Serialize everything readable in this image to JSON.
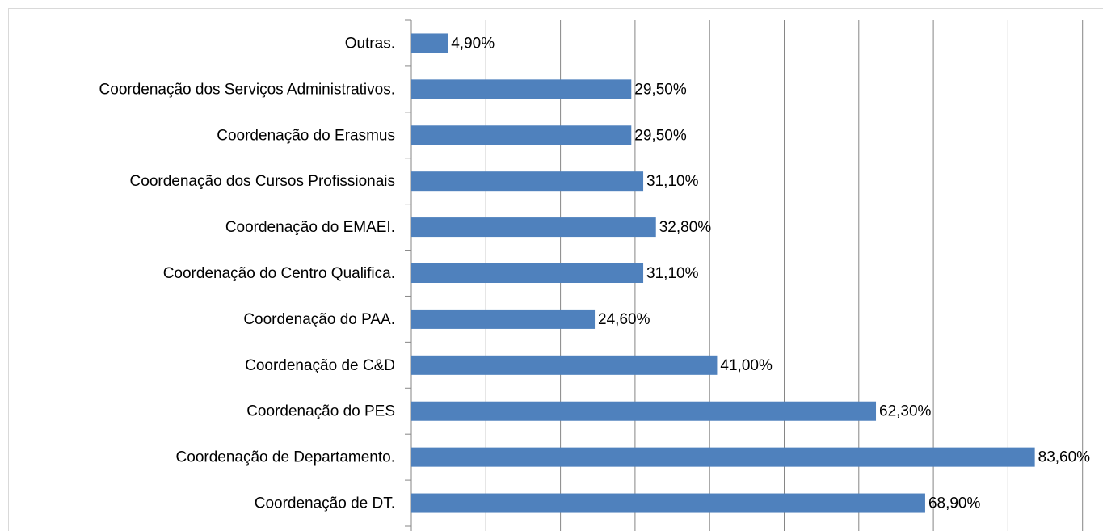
{
  "chart_data": {
    "type": "bar",
    "orientation": "horizontal",
    "categories": [
      "Outras.",
      "Coordenação dos Serviços Administrativos.",
      "Coordenação do Erasmus",
      "Coordenação dos Cursos Profissionais",
      "Coordenação do EMAEI.",
      "Coordenação do Centro Qualifica.",
      "Coordenação do PAA.",
      "Coordenação de C&D",
      "Coordenação do PES",
      "Coordenação de Departamento.",
      "Coordenação de DT."
    ],
    "values": [
      4.9,
      29.5,
      29.5,
      31.1,
      32.8,
      31.1,
      24.6,
      41.0,
      62.3,
      83.6,
      68.9
    ],
    "value_labels": [
      "4,90%",
      "29,50%",
      "29,50%",
      "31,10%",
      "32,80%",
      "31,10%",
      "24,60%",
      "41,00%",
      "62,30%",
      "83,60%",
      "68,90%"
    ],
    "color": "#4f81bd",
    "xlim": [
      0,
      90
    ],
    "xticks": [
      0,
      10,
      20,
      30,
      40,
      50,
      60,
      70,
      80,
      90
    ],
    "grid": true
  }
}
